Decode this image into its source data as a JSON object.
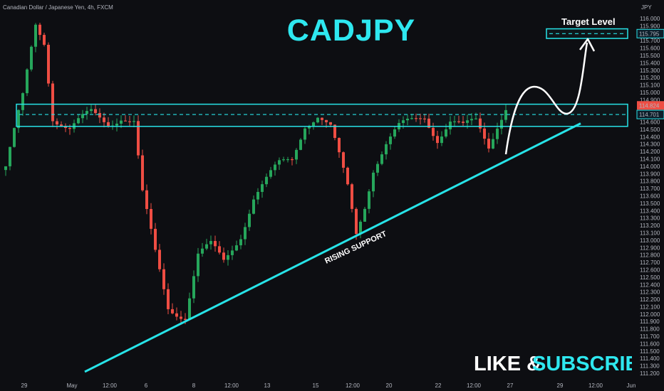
{
  "symbol_label": "Canadian Dollar / Japanese Yen, 4h, FXCM",
  "currency": "JPY",
  "title": "CADJPY",
  "colors": {
    "background": "#0d0e12",
    "up": "#26a65b",
    "down": "#ef4d43",
    "accent": "#27e3e8",
    "title_cyan": "#2ee8f0",
    "last_price_bg": "#ef4d43",
    "zone_label_bg": "#0d1e2a"
  },
  "annotations": {
    "target_level": "Target Level",
    "rising_support": "RISING SUPPORT",
    "cta_like": "LIKE &",
    "cta_subscribe": "SUBSCRIBE"
  },
  "price_labels": {
    "target": "115.795",
    "last": "114.824",
    "zone_mid": "114.701"
  },
  "chart_data": {
    "type": "candlestick",
    "title": "CADJPY",
    "ylim": [
      111.1,
      116.2
    ],
    "y_ticks": [
      "116.000",
      "115.900",
      "115.800",
      "115.700",
      "115.600",
      "115.500",
      "115.400",
      "115.300",
      "115.200",
      "115.100",
      "115.000",
      "114.900",
      "114.800",
      "114.700",
      "114.600",
      "114.500",
      "114.400",
      "114.300",
      "114.200",
      "114.100",
      "114.000",
      "113.900",
      "113.800",
      "113.700",
      "113.600",
      "113.500",
      "113.400",
      "113.300",
      "113.200",
      "113.100",
      "113.000",
      "112.900",
      "112.800",
      "112.700",
      "112.600",
      "112.500",
      "112.400",
      "112.300",
      "112.200",
      "112.100",
      "112.000",
      "111.900",
      "111.800",
      "111.700",
      "111.600",
      "111.500",
      "111.400",
      "111.300",
      "111.200"
    ],
    "x_ticks": [
      "29",
      "May",
      "12:00",
      "6",
      "8",
      "12:00",
      "13",
      "15",
      "12:00",
      "20",
      "22",
      "12:00",
      "27",
      "29",
      "12:00",
      "Jun"
    ],
    "candle_count": 118,
    "ohlc_sample_start": {
      "open": 114.55,
      "close": 115.0
    },
    "resistance_zone": [
      114.54,
      114.84
    ],
    "resistance_mid": 114.701,
    "target_zone": [
      115.73,
      115.86
    ],
    "target_mid": 115.795,
    "support_line": {
      "from": 111.22,
      "to": 114.58
    },
    "projection": "up to target",
    "grid": false
  }
}
